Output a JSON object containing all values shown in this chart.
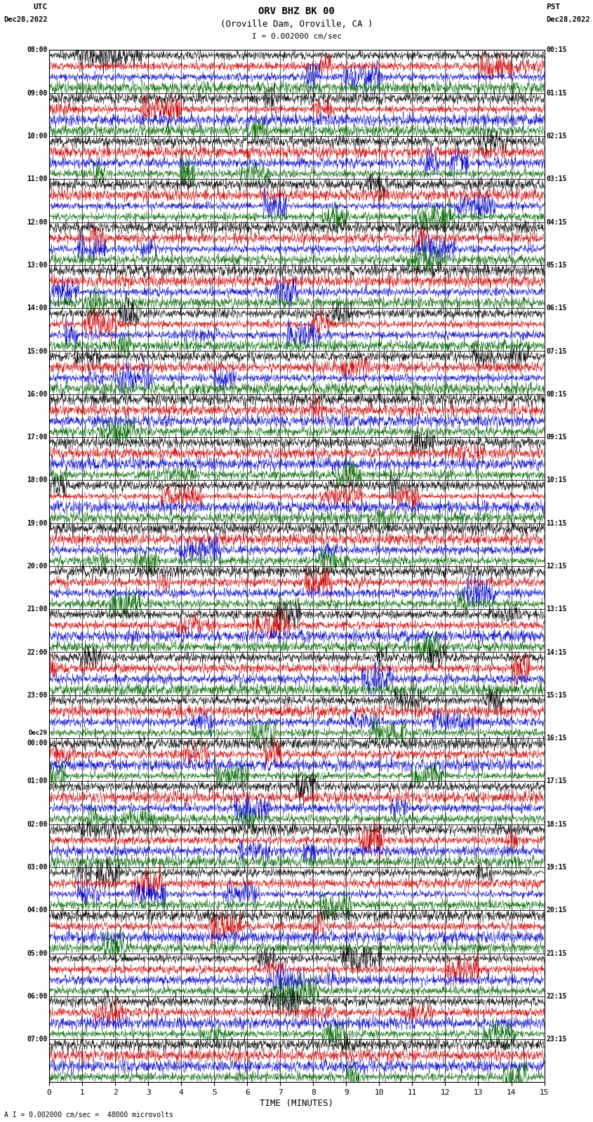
{
  "title_line1": "ORV BHZ BK 00",
  "title_line2": "(Oroville Dam, Oroville, CA )",
  "scale_label": "I = 0.002000 cm/sec",
  "bottom_note": "A I = 0.002000 cm/sec =  48000 microvolts",
  "xlabel": "TIME (MINUTES)",
  "xmin": 0,
  "xmax": 15,
  "xticks": [
    0,
    1,
    2,
    3,
    4,
    5,
    6,
    7,
    8,
    9,
    10,
    11,
    12,
    13,
    14,
    15
  ],
  "background_color": "#ffffff",
  "trace_colors": [
    "#000000",
    "#cc0000",
    "#0000cc",
    "#006600"
  ],
  "n_hours": 24,
  "traces_per_hour": 4,
  "left_times": [
    "08:00",
    "09:00",
    "10:00",
    "11:00",
    "12:00",
    "13:00",
    "14:00",
    "15:00",
    "16:00",
    "17:00",
    "18:00",
    "19:00",
    "20:00",
    "21:00",
    "22:00",
    "23:00",
    "Dec29\n00:00",
    "01:00",
    "02:00",
    "03:00",
    "04:00",
    "05:00",
    "06:00",
    "07:00"
  ],
  "right_times": [
    "00:15",
    "01:15",
    "02:15",
    "03:15",
    "04:15",
    "05:15",
    "06:15",
    "07:15",
    "08:15",
    "09:15",
    "10:15",
    "11:15",
    "12:15",
    "13:15",
    "14:15",
    "15:15",
    "16:15",
    "17:15",
    "18:15",
    "19:15",
    "20:15",
    "21:15",
    "22:15",
    "23:15"
  ]
}
